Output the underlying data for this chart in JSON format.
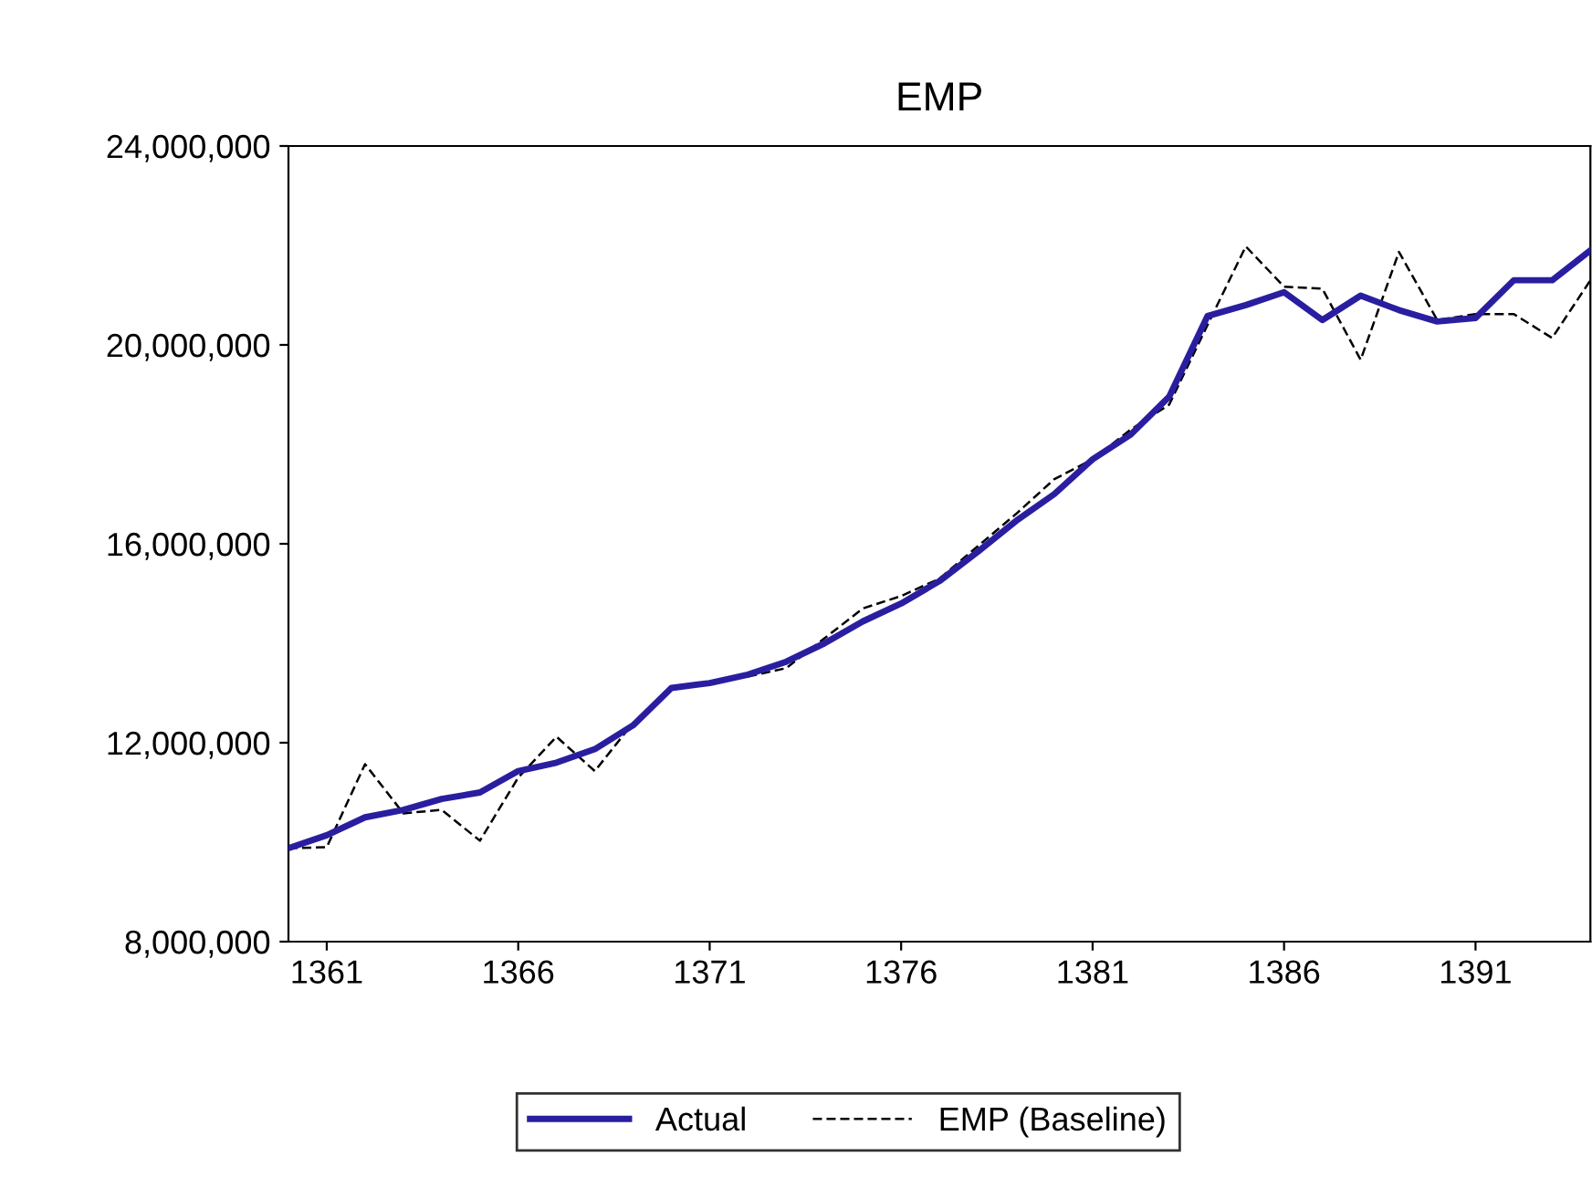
{
  "chart_data": {
    "type": "line",
    "title": "EMP",
    "x": [
      1360,
      1361,
      1362,
      1363,
      1364,
      1365,
      1366,
      1367,
      1368,
      1369,
      1370,
      1371,
      1372,
      1373,
      1374,
      1375,
      1376,
      1377,
      1378,
      1379,
      1380,
      1381,
      1382,
      1383,
      1384,
      1385,
      1386,
      1387,
      1388,
      1389,
      1390,
      1391,
      1392,
      1393,
      1394
    ],
    "series": [
      {
        "name": "Actual",
        "color": "#2a1ea0",
        "line_style": "solid",
        "values": [
          9880000,
          10140000,
          10500000,
          10650000,
          10870000,
          11000000,
          11430000,
          11600000,
          11870000,
          12350000,
          13100000,
          13200000,
          13370000,
          13630000,
          14000000,
          14440000,
          14800000,
          15250000,
          15840000,
          16460000,
          17000000,
          17700000,
          18200000,
          18960000,
          20580000,
          20800000,
          21060000,
          20500000,
          20990000,
          20700000,
          20470000,
          20540000,
          21300000,
          21300000,
          21900000
        ]
      },
      {
        "name": "EMP (Baseline)",
        "color": "#000000",
        "line_style": "dashed",
        "values": [
          9880000,
          9900000,
          11570000,
          10580000,
          10650000,
          10030000,
          11300000,
          12120000,
          11430000,
          12400000,
          null,
          null,
          13330000,
          13500000,
          14100000,
          14700000,
          14950000,
          15300000,
          15950000,
          16600000,
          17300000,
          17700000,
          18300000,
          18800000,
          20400000,
          21980000,
          21170000,
          21130000,
          19700000,
          21870000,
          20500000,
          20620000,
          20620000,
          20140000,
          21300000
        ]
      }
    ],
    "xlim": [
      1360,
      1394
    ],
    "xticks": [
      1361,
      1366,
      1371,
      1376,
      1381,
      1386,
      1391
    ],
    "ylim": [
      8000000,
      24000000
    ],
    "yticks": [
      {
        "value": 8000000,
        "label": "8,000,000"
      },
      {
        "value": 12000000,
        "label": "12,000,000"
      },
      {
        "value": 16000000,
        "label": "16,000,000"
      },
      {
        "value": 20000000,
        "label": "20,000,000"
      },
      {
        "value": 24000000,
        "label": "24,000,000"
      }
    ],
    "grid": false,
    "legend": "bottom"
  }
}
